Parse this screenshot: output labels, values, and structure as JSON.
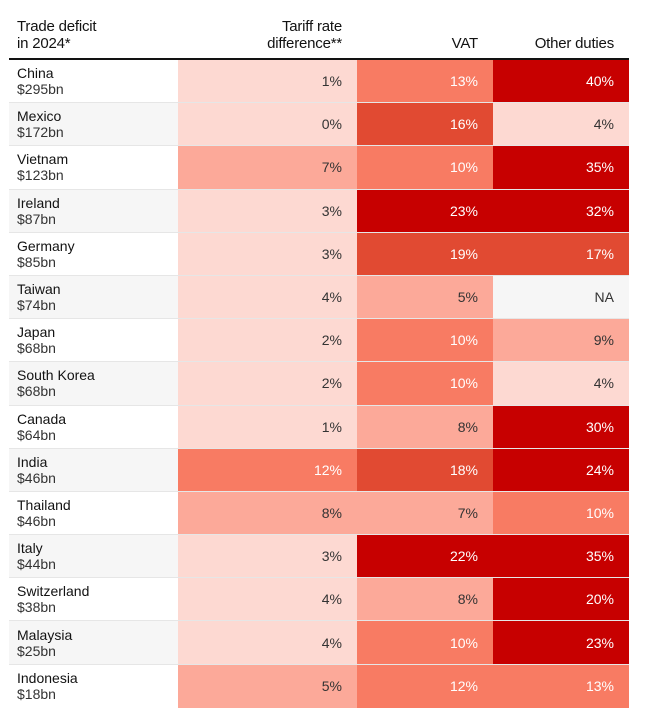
{
  "chart_data": {
    "type": "table",
    "title": "",
    "columns": [
      {
        "key": "country",
        "label_line1": "Trade deficit",
        "label_line2": "in 2024*"
      },
      {
        "key": "tariff",
        "label_line1": "Tariff rate",
        "label_line2": "difference**"
      },
      {
        "key": "vat",
        "label_line1": "",
        "label_line2": "VAT"
      },
      {
        "key": "other",
        "label_line1": "",
        "label_line2": "Other duties"
      }
    ],
    "rows": [
      {
        "country": "China",
        "deficit": "$295bn",
        "tariff": 1,
        "vat": 13,
        "other": 40
      },
      {
        "country": "Mexico",
        "deficit": "$172bn",
        "tariff": 0,
        "vat": 16,
        "other": 4
      },
      {
        "country": "Vietnam",
        "deficit": "$123bn",
        "tariff": 7,
        "vat": 10,
        "other": 35
      },
      {
        "country": "Ireland",
        "deficit": "$87bn",
        "tariff": 3,
        "vat": 23,
        "other": 32
      },
      {
        "country": "Germany",
        "deficit": "$85bn",
        "tariff": 3,
        "vat": 19,
        "other": 17
      },
      {
        "country": "Taiwan",
        "deficit": "$74bn",
        "tariff": 4,
        "vat": 5,
        "other": null
      },
      {
        "country": "Japan",
        "deficit": "$68bn",
        "tariff": 2,
        "vat": 10,
        "other": 9
      },
      {
        "country": "South Korea",
        "deficit": "$68bn",
        "tariff": 2,
        "vat": 10,
        "other": 4
      },
      {
        "country": "Canada",
        "deficit": "$64bn",
        "tariff": 1,
        "vat": 8,
        "other": 30
      },
      {
        "country": "India",
        "deficit": "$46bn",
        "tariff": 12,
        "vat": 18,
        "other": 24
      },
      {
        "country": "Thailand",
        "deficit": "$46bn",
        "tariff": 8,
        "vat": 7,
        "other": 10
      },
      {
        "country": "Italy",
        "deficit": "$44bn",
        "tariff": 3,
        "vat": 22,
        "other": 35
      },
      {
        "country": "Switzerland",
        "deficit": "$38bn",
        "tariff": 4,
        "vat": 8,
        "other": 20
      },
      {
        "country": "Malaysia",
        "deficit": "$25bn",
        "tariff": 4,
        "vat": 10,
        "other": 23
      },
      {
        "country": "Indonesia",
        "deficit": "$18bn",
        "tariff": 5,
        "vat": 12,
        "other": 13
      }
    ],
    "na_label": "NA",
    "unit_suffix": "%",
    "color_scale": {
      "thresholds": [
        5,
        10,
        15,
        20
      ],
      "colors": [
        "#fdd9d2",
        "#fca999",
        "#f87b63",
        "#e14a32",
        "#c70000"
      ]
    }
  }
}
